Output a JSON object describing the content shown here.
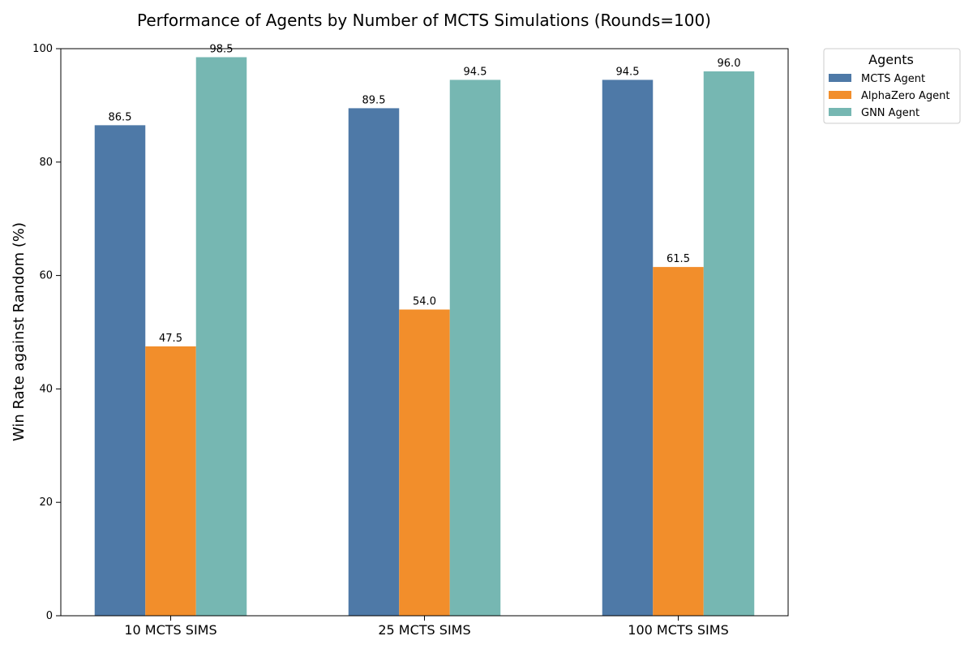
{
  "chart_data": {
    "type": "bar",
    "title": "Performance of Agents by Number of MCTS Simulations (Rounds=100)",
    "xlabel": "",
    "ylabel": "Win Rate against Random (%)",
    "ylim": [
      0,
      100
    ],
    "yticks": [
      0,
      20,
      40,
      60,
      80,
      100
    ],
    "categories": [
      "10 MCTS SIMS",
      "25 MCTS SIMS",
      "100 MCTS SIMS"
    ],
    "series": [
      {
        "name": "MCTS Agent",
        "values": [
          86.5,
          89.5,
          94.5
        ],
        "labels": [
          "86.5",
          "89.5",
          "94.5"
        ],
        "color": "#4e79a7"
      },
      {
        "name": "AlphaZero Agent",
        "values": [
          47.5,
          54.0,
          61.5
        ],
        "labels": [
          "47.5",
          "54.0",
          "61.5"
        ],
        "color": "#f28e2b"
      },
      {
        "name": "GNN Agent",
        "values": [
          98.5,
          94.5,
          96.0
        ],
        "labels": [
          "98.5",
          "94.5",
          "96.0"
        ],
        "color": "#76b7b2"
      }
    ],
    "legend": {
      "title": "Agents",
      "position": "outside-top-right"
    },
    "grid": false
  }
}
